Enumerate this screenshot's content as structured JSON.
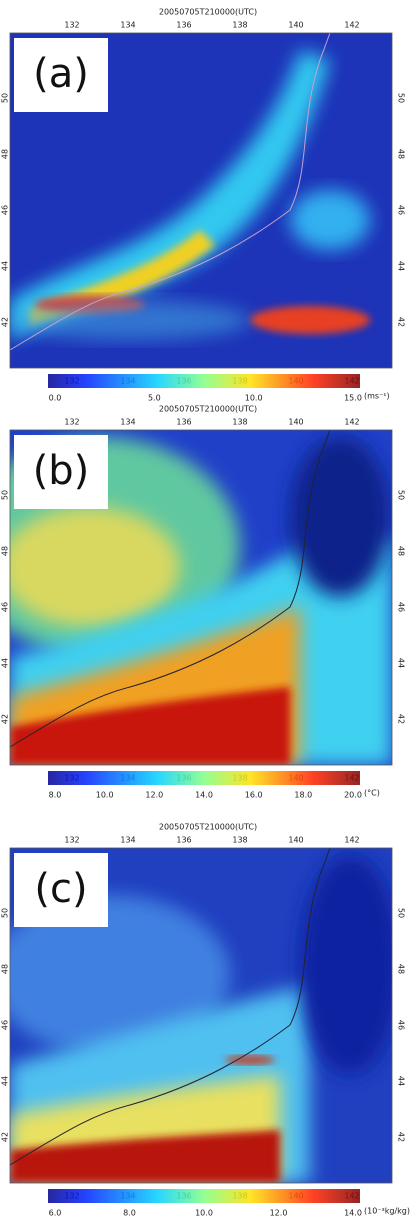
{
  "panels": [
    {
      "title": "20050705T210000(UTC)",
      "label": "(a)",
      "lon_ticks": [
        "132",
        "134",
        "136",
        "138",
        "140",
        "142"
      ],
      "lat_ticks": [
        "50",
        "48",
        "46",
        "44",
        "42"
      ],
      "colorbar_ticks": [
        "0.0",
        "5.0",
        "10.0",
        "15.0"
      ],
      "unit": "(ms⁻¹)"
    },
    {
      "title": "20050705T210000(UTC)",
      "label": "(b)",
      "lon_ticks": [
        "132",
        "134",
        "136",
        "138",
        "140",
        "142"
      ],
      "lat_ticks": [
        "50",
        "48",
        "46",
        "44",
        "42"
      ],
      "colorbar_ticks": [
        "8.0",
        "10.0",
        "12.0",
        "14.0",
        "16.0",
        "18.0",
        "20.0"
      ],
      "unit": "(°C)"
    },
    {
      "title": "20050705T210000(UTC)",
      "label": "(c)",
      "lon_ticks": [
        "132",
        "134",
        "136",
        "138",
        "140",
        "142"
      ],
      "lat_ticks": [
        "50",
        "48",
        "46",
        "44",
        "42"
      ],
      "colorbar_ticks": [
        "6.0",
        "8.0",
        "10.0",
        "12.0",
        "14.0"
      ],
      "unit": "(10⁻³kg/kg)"
    }
  ]
}
